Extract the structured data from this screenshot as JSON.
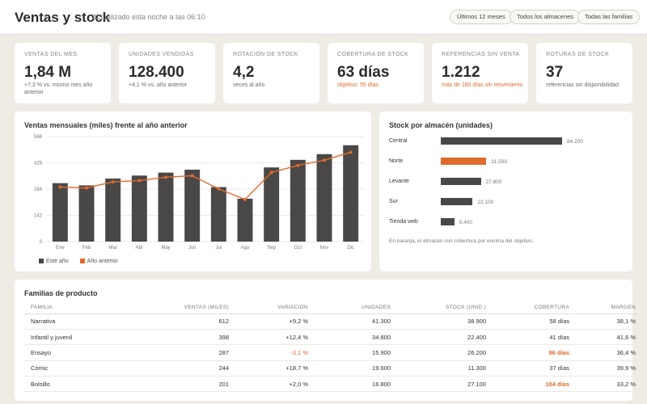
{
  "header": {
    "title": "Ventas y stock",
    "subtitle": "Actualizado esta noche a las 06:10",
    "filters": [
      "Últimos 12 meses",
      "Todos los almacenes",
      "Todas las familias"
    ]
  },
  "kpis": [
    {
      "label": "Ventas del mes",
      "value": "1,84 M",
      "note": "+7,3 % vs. mismo mes año anterior",
      "note_alert": false
    },
    {
      "label": "Unidades vendidas",
      "value": "128.400",
      "note": "+4,1 % vs. año anterior",
      "note_alert": false
    },
    {
      "label": "Rotación de stock",
      "value": "4,2",
      "note": "veces al año",
      "note_alert": false
    },
    {
      "label": "Cobertura de stock",
      "value": "63 días",
      "note": "objetivo: 55 días",
      "note_alert": true
    },
    {
      "label": "Referencias sin venta",
      "value": "1.212",
      "note": "más de 180 días sin movimiento",
      "note_alert": true
    },
    {
      "label": "Roturas de stock",
      "value": "37",
      "note": "referencias sin disponibilidad",
      "note_alert": false
    }
  ],
  "colors": {
    "bar": "#4a4847",
    "accent": "#e06a2c",
    "grid": "#e6e2dc"
  },
  "sales_chart": {
    "title": "Ventas mensuales (miles) frente al año anterior",
    "legend": [
      "Este año",
      "Año anterior"
    ]
  },
  "chart_data": {
    "type": "bar",
    "categories": [
      "Ene",
      "Feb",
      "Mar",
      "Abr",
      "May",
      "Jun",
      "Jul",
      "Ago",
      "Sep",
      "Oct",
      "Nov",
      "Dic"
    ],
    "series": [
      {
        "name": "Este año",
        "type": "bar",
        "values": [
          316,
          304,
          341,
          357,
          373,
          389,
          295,
          232,
          401,
          442,
          473,
          521
        ]
      },
      {
        "name": "Año anterior",
        "type": "line",
        "values": [
          295,
          290,
          323,
          330,
          348,
          356,
          285,
          228,
          374,
          412,
          440,
          483
        ]
      }
    ],
    "yticks": [
      0,
      142,
      284,
      426,
      568
    ],
    "ylim": [
      0,
      568
    ],
    "grid": true,
    "legend_position": "bottom-left"
  },
  "warehouses": {
    "title": "Stock por almacén (unidades)",
    "items": [
      {
        "name": "Central",
        "value": 84200,
        "label": "84.200",
        "highlight": false
      },
      {
        "name": "Norte",
        "value": 31500,
        "label": "31.500",
        "highlight": true
      },
      {
        "name": "Levante",
        "value": 27800,
        "label": "27.800",
        "highlight": false
      },
      {
        "name": "Sur",
        "value": 22100,
        "label": "22.100",
        "highlight": false
      },
      {
        "name": "Tienda web",
        "value": 9400,
        "label": "9.400",
        "highlight": false
      }
    ],
    "note": "En naranja, el almacén con cobertura por encima del objetivo."
  },
  "families": {
    "title": "Familias de producto",
    "columns": [
      "Familia",
      "Ventas (miles)",
      "Variación",
      "Unidades",
      "Stock (unid.)",
      "Cobertura",
      "Margen"
    ],
    "rows": [
      {
        "familia": "Narrativa",
        "ventas": "612",
        "variacion": "+9,2 %",
        "unidades": "41.300",
        "stock": "38.900",
        "cobertura": "58 días",
        "margen": "38,1 %",
        "variacion_alert": false,
        "cobertura_alert": false
      },
      {
        "familia": "Infantil y juvenil",
        "ventas": "398",
        "variacion": "+12,4 %",
        "unidades": "34.800",
        "stock": "22.400",
        "cobertura": "41 días",
        "margen": "41,6 %",
        "variacion_alert": false,
        "cobertura_alert": false
      },
      {
        "familia": "Ensayo",
        "ventas": "287",
        "variacion": "-3,1 %",
        "unidades": "15.900",
        "stock": "26.200",
        "cobertura": "96 días",
        "margen": "36,4 %",
        "variacion_alert": true,
        "cobertura_alert": true
      },
      {
        "familia": "Cómic",
        "ventas": "244",
        "variacion": "+18,7 %",
        "unidades": "19.600",
        "stock": "11.300",
        "cobertura": "37 días",
        "margen": "39,9 %",
        "variacion_alert": false,
        "cobertura_alert": false
      },
      {
        "familia": "Bolsillo",
        "ventas": "201",
        "variacion": "+2,0 %",
        "unidades": "16.800",
        "stock": "27.100",
        "cobertura": "104 días",
        "margen": "33,2 %",
        "variacion_alert": false,
        "cobertura_alert": true
      }
    ]
  }
}
